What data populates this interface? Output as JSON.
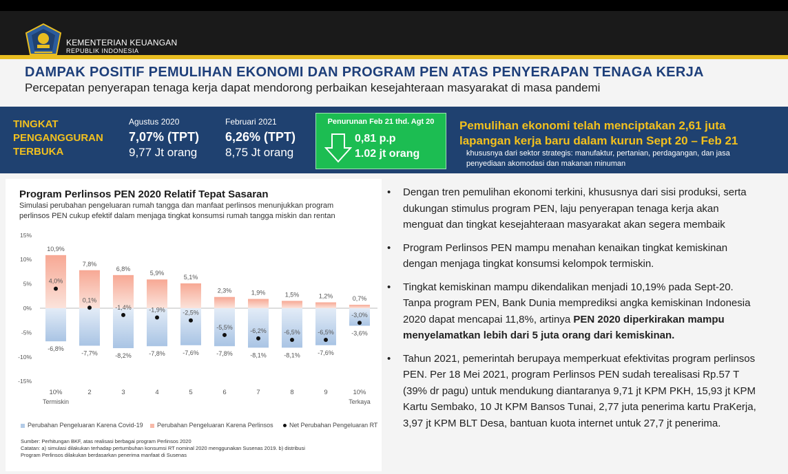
{
  "header": {
    "org_name": "KEMENTERIAN KEUANGAN",
    "org_sub": "REPUBLIK INDONESIA"
  },
  "slide": {
    "title": "DAMPAK POSITIF PEMULIHAN EKONOMI DAN PROGRAM PEN ATAS PENYERAPAN TENAGA KERJA",
    "subtitle": "Percepatan penyerapan tenaga kerja dapat mendorong perbaikan kesejahteraan masyarakat di masa pandemi"
  },
  "tpt": {
    "label_lines": [
      "TINGKAT",
      "PENGANGGURAN",
      "TERBUKA"
    ],
    "periods": [
      {
        "period": "Agustus 2020",
        "rate": "7,07% (TPT)",
        "people": "9,77 Jt orang"
      },
      {
        "period": "Februari 2021",
        "rate": "6,26% (TPT)",
        "people": "8,75 Jt orang"
      }
    ],
    "decline": {
      "title": "Penurunan Feb 21 thd. Agt 20",
      "value1": "0,81 p.p",
      "value2": "1.02 jt orang"
    },
    "recovery_title_lines": [
      "Pemulihan ekonomi telah menciptakan 2,61 juta",
      "lapangan kerja baru dalam kurun Sept 20 – Feb 21"
    ],
    "recovery_note_lines": [
      "khususnya  dari sektor strategis: manufaktur, pertanian, perdagangan, dan jasa",
      "penyediaan akomodasi dan makanan minuman"
    ]
  },
  "chart_panel": {
    "title": "Program Perlinsos PEN 2020 Relatif Tepat Sasaran",
    "subtitle_lines": [
      "Simulasi perubahan pengeluaran rumah tangga dan manfaat perlinsos menunjukkan program",
      "perlinsos PEN cukup efektif dalam menjaga tingkat konsumsi rumah tangga miskin dan rentan"
    ],
    "legend": [
      "Perubahan Pengeluaran Karena Covid-19",
      "Perubahan Pengeluaran Karena Perlinsos",
      "Net Perubahan Pengeluaran RT"
    ],
    "source_lines": [
      "Sumber: Perhitungan BKF, atas realisasi berbagai program Perlinsos 2020",
      "Catatan: a) simulasi dilakukan terhadap pertumbuhan konsumsi RT nominal 2020 menggunakan Susenas 2019. b) distribusi",
      "Program Perlinsos dilakukan berdasarkan penerima manfaat di Susenas"
    ]
  },
  "chart_data": {
    "type": "bar",
    "categories": [
      "10%",
      "2",
      "3",
      "4",
      "5",
      "6",
      "7",
      "8",
      "9",
      "10%"
    ],
    "category_sublabels": [
      "Termiskin",
      "",
      "",
      "",
      "",
      "",
      "",
      "",
      "",
      "Terkaya"
    ],
    "series": [
      {
        "name": "Perubahan Pengeluaran Karena Covid-19",
        "values": [
          -6.8,
          -7.7,
          -8.2,
          -7.8,
          -7.6,
          -7.8,
          -8.1,
          -8.1,
          -7.6,
          -3.6
        ],
        "labels": [
          "-6,8%",
          "-7,7%",
          "-8,2%",
          "-7,8%",
          "-7,6%",
          "-7,8%",
          "-8,1%",
          "-8,1%",
          "-7,6%",
          "-3,6%"
        ],
        "color": "#b3cbe7"
      },
      {
        "name": "Perubahan Pengeluaran Karena Perlinsos",
        "values": [
          10.9,
          7.8,
          6.8,
          5.9,
          5.1,
          2.3,
          1.9,
          1.5,
          1.2,
          0.7
        ],
        "labels": [
          "10,9%",
          "7,8%",
          "6,8%",
          "5,9%",
          "5,1%",
          "2,3%",
          "1,9%",
          "1,5%",
          "1,2%",
          "0,7%"
        ],
        "color": "#f7b9a8"
      },
      {
        "name": "Net Perubahan Pengeluaran RT",
        "values": [
          4.0,
          0.1,
          -1.4,
          -1.9,
          -2.5,
          -5.5,
          -6.2,
          -6.5,
          -6.5,
          -3.0
        ],
        "labels": [
          "4,0%",
          "0,1%",
          "-1,4%",
          "-1,9%",
          "-2,5%",
          "-5,5%",
          "-6,2%",
          "-6,5%",
          "-6,5%",
          "-3,0%"
        ],
        "color": "#111111"
      }
    ],
    "yticks": [
      "15%",
      "10%",
      "5%",
      "0%",
      "-5%",
      "-10%",
      "-15%"
    ],
    "ylim": [
      -15,
      15
    ],
    "grid": false
  },
  "bullets": [
    {
      "parts": [
        {
          "t": "Dengan tren pemulihan ekonomi terkini, khususnya dari sisi produksi, serta dukungan stimulus program PEN, laju penyerapan tenaga kerja akan menguat dan tingkat kesejahteraan masyarakat akan segera membaik"
        }
      ]
    },
    {
      "parts": [
        {
          "t": "Program Perlinsos PEN mampu menahan kenaikan tingkat kemiskinan dengan menjaga tingkat konsumsi kelompok termiskin."
        }
      ]
    },
    {
      "parts": [
        {
          "t": "Tingkat kemiskinan mampu dikendalikan menjadi 10,19% pada Sept-20. Tanpa program PEN, Bank Dunia memprediksi angka kemiskinan Indonesia 2020 dapat mencapai 11,8%, artinya "
        },
        {
          "t": "PEN 2020 diperkirakan mampu menyelamatkan lebih dari 5 juta orang dari kemiskinan.",
          "b": true
        }
      ]
    },
    {
      "parts": [
        {
          "t": "Tahun 2021, pemerintah berupaya memperkuat efektivitas program perlinsos PEN. Per 18 Mei 2021, program Perlinsos PEN sudah terealisasi Rp.57 T (39% dr pagu) untuk mendukung diantaranya 9,71 jt KPM PKH, 15,93 jt KPM Kartu Sembako, 10 Jt KPM Bansos Tunai, 2,77 juta penerima kartu PraKerja, 3,97 jt KPM BLT Desa, bantuan kuota internet untuk 27,7 jt penerima."
        }
      ]
    }
  ],
  "colors": {
    "navy": "#1f4170",
    "gold": "#f2c01e",
    "green": "#1cbd52",
    "title_blue": "#1e3f7a"
  }
}
